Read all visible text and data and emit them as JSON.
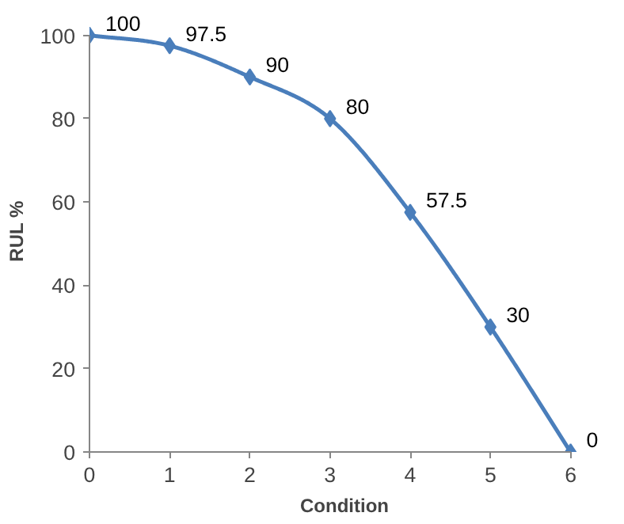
{
  "chart_data": {
    "type": "line",
    "xlabel": "Condition",
    "ylabel": "RUL %",
    "x": [
      0,
      1,
      2,
      3,
      4,
      5,
      6
    ],
    "series": [
      {
        "color": "#4a7ebb",
        "values": [
          100,
          97.5,
          90,
          80,
          57.5,
          30,
          0
        ]
      }
    ],
    "xlim": [
      0,
      6
    ],
    "ylim": [
      0,
      100
    ],
    "xticks": [
      0,
      1,
      2,
      3,
      4,
      5,
      6
    ],
    "yticks": [
      0,
      20,
      40,
      60,
      80,
      100
    ],
    "marker": "diamond",
    "line_style": "solid",
    "data_labels": true,
    "grid": false
  }
}
